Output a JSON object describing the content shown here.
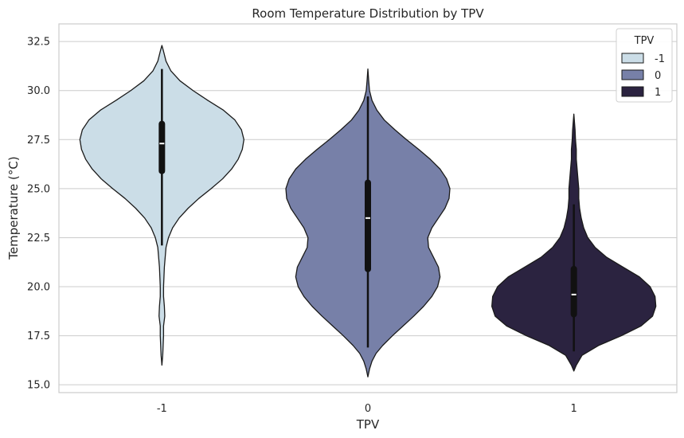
{
  "chart_data": {
    "type": "violin",
    "title": "Room Temperature Distribution by TPV",
    "xlabel": "TPV",
    "ylabel": "Temperature (°C)",
    "categories": [
      "-1",
      "0",
      "1"
    ],
    "ylim": [
      14.6,
      33.4
    ],
    "yticks": [
      15.0,
      17.5,
      20.0,
      22.5,
      25.0,
      27.5,
      30.0,
      32.5
    ],
    "ytick_labels": [
      "15.0",
      "17.5",
      "20.0",
      "22.5",
      "25.0",
      "27.5",
      "30.0",
      "32.5"
    ],
    "grid": true,
    "legend": {
      "title": "TPV",
      "position": "top-right",
      "entries": [
        "-1",
        "0",
        "1"
      ]
    },
    "colors": [
      "#cbdde7",
      "#7780a8",
      "#2b2340"
    ],
    "violins": [
      {
        "name": "-1",
        "min": 16.0,
        "whisker_low": 22.1,
        "q1": 25.9,
        "median": 27.3,
        "q3": 28.3,
        "whisker_high": 31.1,
        "max": 32.3,
        "profile": [
          [
            16.0,
            0.0
          ],
          [
            16.5,
            0.01
          ],
          [
            17.0,
            0.015
          ],
          [
            17.5,
            0.02
          ],
          [
            18.0,
            0.02
          ],
          [
            18.5,
            0.035
          ],
          [
            19.0,
            0.03
          ],
          [
            19.5,
            0.02
          ],
          [
            20.0,
            0.02
          ],
          [
            20.5,
            0.025
          ],
          [
            21.0,
            0.03
          ],
          [
            21.5,
            0.04
          ],
          [
            22.0,
            0.05
          ],
          [
            22.5,
            0.08
          ],
          [
            23.0,
            0.13
          ],
          [
            23.5,
            0.21
          ],
          [
            24.0,
            0.32
          ],
          [
            24.5,
            0.45
          ],
          [
            25.0,
            0.6
          ],
          [
            25.5,
            0.74
          ],
          [
            26.0,
            0.85
          ],
          [
            26.5,
            0.93
          ],
          [
            27.0,
            0.98
          ],
          [
            27.5,
            1.0
          ],
          [
            28.0,
            0.97
          ],
          [
            28.5,
            0.89
          ],
          [
            29.0,
            0.75
          ],
          [
            29.5,
            0.56
          ],
          [
            30.0,
            0.38
          ],
          [
            30.5,
            0.22
          ],
          [
            31.0,
            0.11
          ],
          [
            31.5,
            0.05
          ],
          [
            32.0,
            0.02
          ],
          [
            32.3,
            0.0
          ]
        ]
      },
      {
        "name": "0",
        "min": 15.4,
        "whisker_low": 16.9,
        "q1": 20.9,
        "median": 23.5,
        "q3": 25.3,
        "whisker_high": 29.7,
        "max": 31.1,
        "profile": [
          [
            15.4,
            0.0
          ],
          [
            15.8,
            0.02
          ],
          [
            16.2,
            0.05
          ],
          [
            16.6,
            0.1
          ],
          [
            17.0,
            0.18
          ],
          [
            17.5,
            0.3
          ],
          [
            18.0,
            0.43
          ],
          [
            18.5,
            0.56
          ],
          [
            19.0,
            0.68
          ],
          [
            19.5,
            0.78
          ],
          [
            20.0,
            0.85
          ],
          [
            20.5,
            0.88
          ],
          [
            21.0,
            0.86
          ],
          [
            21.5,
            0.8
          ],
          [
            22.0,
            0.74
          ],
          [
            22.5,
            0.73
          ],
          [
            23.0,
            0.78
          ],
          [
            23.5,
            0.86
          ],
          [
            24.0,
            0.94
          ],
          [
            24.5,
            0.99
          ],
          [
            25.0,
            1.0
          ],
          [
            25.5,
            0.96
          ],
          [
            26.0,
            0.88
          ],
          [
            26.5,
            0.76
          ],
          [
            27.0,
            0.62
          ],
          [
            27.5,
            0.47
          ],
          [
            28.0,
            0.33
          ],
          [
            28.5,
            0.2
          ],
          [
            29.0,
            0.11
          ],
          [
            29.5,
            0.05
          ],
          [
            30.0,
            0.02
          ],
          [
            30.5,
            0.01
          ],
          [
            31.1,
            0.0
          ]
        ]
      },
      {
        "name": "1",
        "min": 15.7,
        "whisker_low": 16.7,
        "q1": 18.6,
        "median": 19.6,
        "q3": 20.9,
        "whisker_high": 24.2,
        "max": 28.8,
        "profile": [
          [
            15.7,
            0.0
          ],
          [
            16.0,
            0.03
          ],
          [
            16.5,
            0.1
          ],
          [
            17.0,
            0.3
          ],
          [
            17.5,
            0.58
          ],
          [
            18.0,
            0.82
          ],
          [
            18.5,
            0.96
          ],
          [
            19.0,
            1.0
          ],
          [
            19.5,
            0.99
          ],
          [
            20.0,
            0.93
          ],
          [
            20.5,
            0.8
          ],
          [
            21.0,
            0.6
          ],
          [
            21.5,
            0.4
          ],
          [
            22.0,
            0.26
          ],
          [
            22.5,
            0.17
          ],
          [
            23.0,
            0.12
          ],
          [
            23.5,
            0.09
          ],
          [
            24.0,
            0.07
          ],
          [
            24.5,
            0.06
          ],
          [
            25.0,
            0.06
          ],
          [
            25.5,
            0.05
          ],
          [
            26.0,
            0.04
          ],
          [
            26.5,
            0.03
          ],
          [
            27.0,
            0.03
          ],
          [
            27.5,
            0.02
          ],
          [
            28.0,
            0.015
          ],
          [
            28.8,
            0.0
          ]
        ]
      }
    ]
  }
}
